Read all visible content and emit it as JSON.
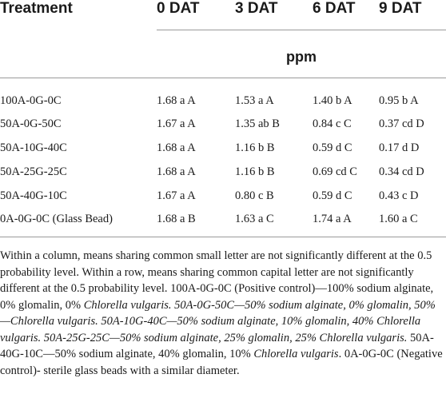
{
  "table": {
    "headers": [
      "Treatment",
      "0 DAT",
      "3 DAT",
      "6 DAT",
      "9 DAT"
    ],
    "unit": "ppm",
    "rows": [
      [
        "100A-0G-0C",
        "1.68 a A",
        "1.53 a A",
        "1.40 b A",
        "0.95 b A"
      ],
      [
        "50A-0G-50C",
        "1.67 a A",
        "1.35 ab B",
        "0.84 c C",
        "0.37 cd D"
      ],
      [
        "50A-10G-40C",
        "1.68 a A",
        "1.16 b B",
        "0.59 d C",
        "0.17 d D"
      ],
      [
        "50A-25G-25C",
        "1.68 a A",
        "1.16 b B",
        "0.69 cd C",
        "0.34 cd D"
      ],
      [
        "50A-40G-10C",
        "1.67 a A",
        "0.80 c B",
        "0.59 d C",
        "0.43 c D"
      ],
      [
        "0A-0G-0C (Glass Bead)",
        "1.68 a B",
        "1.63 a C",
        "1.74 a A",
        "1.60 a C"
      ]
    ]
  },
  "footnote": {
    "line1": "Within a column, means sharing common small letter are not significantly different at the 0.5 probability level. Within a row, means sharing common capital letter are not significantly different at the 0.5 probability level. 100A-0G-0C (Positive control)—100% sodium alginate, 0% glomalin, 0% ",
    "italic1": "Chlorella vulgaris. 50A-0G-50C—50% sodium alginate, 0% glomalin, 50%—Chlorella vulgaris. 50A-10G-40C—50% sodium alginate, 10% glomalin, 40% Chlorella vulgaris. 50A-25G-25C—50% sodium alginate, 25% glomalin, 25% Chlorella vulgaris.",
    "mid": " 50A-40G-10C—50% sodium alginate, 40% glomalin, 10% ",
    "italic2": "Chlorella vulgaris",
    "end": ". 0A-0G-0C (Negative control)- sterile glass beads with a similar diameter."
  }
}
